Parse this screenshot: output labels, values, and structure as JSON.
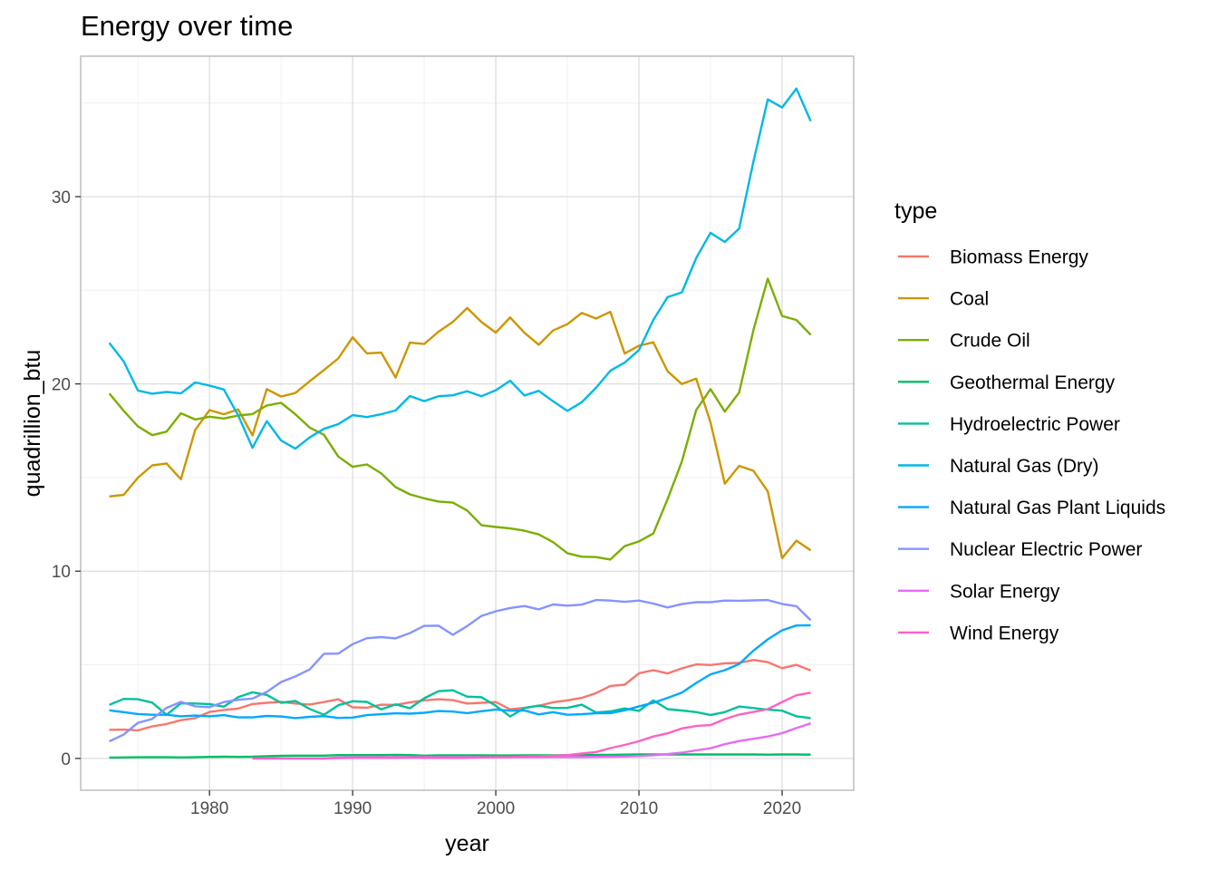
{
  "chart_data": {
    "type": "line",
    "title": "Energy over time",
    "xlabel": "year",
    "ylabel": "quadrillion_btu",
    "xlim": [
      1971,
      2025
    ],
    "ylim": [
      -1.7,
      37.5
    ],
    "x_ticks": [
      1980,
      1990,
      2000,
      2010,
      2020
    ],
    "x_tick_labels": [
      "1980",
      "1990",
      "2000",
      "2010",
      "2020"
    ],
    "y_ticks": [
      0,
      10,
      20,
      30
    ],
    "y_tick_labels": [
      "0",
      "10",
      "20",
      "30"
    ],
    "grid": true,
    "legend": {
      "title": "type",
      "placement": "right"
    },
    "series": [
      {
        "name": "Biomass Energy",
        "color": "#F8766D",
        "x": [
          1973,
          1974,
          1975,
          1976,
          1977,
          1978,
          1979,
          1980,
          1981,
          1982,
          1983,
          1984,
          1985,
          1986,
          1987,
          1988,
          1989,
          1990,
          1991,
          1992,
          1993,
          1994,
          1995,
          1996,
          1997,
          1998,
          1999,
          2000,
          2001,
          2002,
          2003,
          2004,
          2005,
          2006,
          2007,
          2008,
          2009,
          2010,
          2011,
          2012,
          2013,
          2014,
          2015,
          2016,
          2017,
          2018,
          2019,
          2020,
          2021,
          2022
        ],
        "y": [
          1.53,
          1.54,
          1.5,
          1.71,
          1.84,
          2.04,
          2.15,
          2.48,
          2.59,
          2.66,
          2.9,
          2.97,
          3.02,
          2.93,
          2.88,
          3.01,
          3.16,
          2.73,
          2.71,
          2.87,
          2.86,
          2.99,
          3.1,
          3.16,
          3.11,
          2.93,
          2.97,
          3.01,
          2.62,
          2.7,
          2.81,
          3.0,
          3.1,
          3.23,
          3.49,
          3.87,
          3.94,
          4.55,
          4.71,
          4.54,
          4.81,
          5.02,
          4.99,
          5.08,
          5.1,
          5.26,
          5.14,
          4.82,
          5.0,
          4.7
        ]
      },
      {
        "name": "Coal",
        "color": "#CD9600",
        "x": [
          1973,
          1974,
          1975,
          1976,
          1977,
          1978,
          1979,
          1980,
          1981,
          1982,
          1983,
          1984,
          1985,
          1986,
          1987,
          1988,
          1989,
          1990,
          1991,
          1992,
          1993,
          1994,
          1995,
          1996,
          1997,
          1998,
          1999,
          2000,
          2001,
          2002,
          2003,
          2004,
          2005,
          2006,
          2007,
          2008,
          2009,
          2010,
          2011,
          2012,
          2013,
          2014,
          2015,
          2016,
          2017,
          2018,
          2019,
          2020,
          2021,
          2022
        ],
        "y": [
          13.99,
          14.07,
          14.99,
          15.65,
          15.75,
          14.91,
          17.54,
          18.6,
          18.38,
          18.64,
          17.25,
          19.72,
          19.33,
          19.51,
          20.14,
          20.74,
          21.36,
          22.49,
          21.63,
          21.67,
          20.34,
          22.2,
          22.13,
          22.79,
          23.31,
          24.05,
          23.3,
          22.74,
          23.55,
          22.73,
          22.09,
          22.85,
          23.19,
          23.79,
          23.49,
          23.85,
          21.62,
          22.04,
          22.22,
          20.68,
          19.99,
          20.28,
          17.95,
          14.67,
          15.62,
          15.36,
          14.26,
          10.7,
          11.63,
          11.11
        ]
      },
      {
        "name": "Crude Oil",
        "color": "#7CAE00",
        "x": [
          1973,
          1974,
          1975,
          1976,
          1977,
          1978,
          1979,
          1980,
          1981,
          1982,
          1983,
          1984,
          1985,
          1986,
          1987,
          1988,
          1989,
          1990,
          1991,
          1992,
          1993,
          1994,
          1995,
          1996,
          1997,
          1998,
          1999,
          2000,
          2001,
          2002,
          2003,
          2004,
          2005,
          2006,
          2007,
          2008,
          2009,
          2010,
          2011,
          2012,
          2013,
          2014,
          2015,
          2016,
          2017,
          2018,
          2019,
          2020,
          2021,
          2022
        ],
        "y": [
          19.49,
          18.57,
          17.73,
          17.26,
          17.45,
          18.43,
          18.1,
          18.25,
          18.15,
          18.31,
          18.39,
          18.85,
          18.99,
          18.38,
          17.67,
          17.28,
          16.12,
          15.57,
          15.7,
          15.22,
          14.49,
          14.1,
          13.89,
          13.72,
          13.66,
          13.24,
          12.45,
          12.36,
          12.28,
          12.16,
          11.96,
          11.55,
          10.96,
          10.77,
          10.75,
          10.62,
          11.34,
          11.59,
          12.01,
          13.84,
          15.86,
          18.6,
          19.72,
          18.52,
          19.54,
          22.88,
          25.62,
          23.63,
          23.41,
          22.62
        ]
      },
      {
        "name": "Geothermal Energy",
        "color": "#00BE67",
        "x": [
          1973,
          1974,
          1975,
          1976,
          1977,
          1978,
          1979,
          1980,
          1981,
          1982,
          1983,
          1984,
          1985,
          1986,
          1987,
          1988,
          1989,
          1990,
          1991,
          1992,
          1993,
          1994,
          1995,
          1996,
          1997,
          1998,
          1999,
          2000,
          2001,
          2002,
          2003,
          2004,
          2005,
          2006,
          2007,
          2008,
          2009,
          2010,
          2011,
          2012,
          2013,
          2014,
          2015,
          2016,
          2017,
          2018,
          2019,
          2020,
          2021,
          2022
        ],
        "y": [
          0.04,
          0.05,
          0.06,
          0.06,
          0.06,
          0.05,
          0.06,
          0.08,
          0.09,
          0.08,
          0.09,
          0.12,
          0.14,
          0.15,
          0.15,
          0.15,
          0.18,
          0.18,
          0.18,
          0.18,
          0.19,
          0.18,
          0.15,
          0.17,
          0.17,
          0.17,
          0.17,
          0.16,
          0.16,
          0.17,
          0.17,
          0.17,
          0.18,
          0.18,
          0.19,
          0.19,
          0.2,
          0.21,
          0.21,
          0.21,
          0.21,
          0.21,
          0.21,
          0.21,
          0.21,
          0.21,
          0.2,
          0.21,
          0.21,
          0.2
        ]
      },
      {
        "name": "Hydroelectric Power",
        "color": "#00C19A",
        "x": [
          1973,
          1974,
          1975,
          1976,
          1977,
          1978,
          1979,
          1980,
          1981,
          1982,
          1983,
          1984,
          1985,
          1986,
          1987,
          1988,
          1989,
          1990,
          1991,
          1992,
          1993,
          1994,
          1995,
          1996,
          1997,
          1998,
          1999,
          2000,
          2001,
          2002,
          2003,
          2004,
          2005,
          2006,
          2007,
          2008,
          2009,
          2010,
          2011,
          2012,
          2013,
          2014,
          2015,
          2016,
          2017,
          2018,
          2019,
          2020,
          2021,
          2022
        ],
        "y": [
          2.86,
          3.18,
          3.16,
          2.98,
          2.33,
          2.94,
          2.93,
          2.9,
          2.76,
          3.27,
          3.53,
          3.39,
          2.97,
          3.07,
          2.64,
          2.33,
          2.84,
          3.05,
          3.02,
          2.62,
          2.89,
          2.68,
          3.21,
          3.59,
          3.64,
          3.3,
          3.27,
          2.81,
          2.24,
          2.69,
          2.82,
          2.69,
          2.7,
          2.87,
          2.45,
          2.51,
          2.67,
          2.54,
          3.1,
          2.63,
          2.56,
          2.47,
          2.32,
          2.47,
          2.77,
          2.69,
          2.6,
          2.55,
          2.25,
          2.15
        ]
      },
      {
        "name": "Natural Gas (Dry)",
        "color": "#00B8E7",
        "x": [
          1973,
          1974,
          1975,
          1976,
          1977,
          1978,
          1979,
          1980,
          1981,
          1982,
          1983,
          1984,
          1985,
          1986,
          1987,
          1988,
          1989,
          1990,
          1991,
          1992,
          1993,
          1994,
          1995,
          1996,
          1997,
          1998,
          1999,
          2000,
          2001,
          2002,
          2003,
          2004,
          2005,
          2006,
          2007,
          2008,
          2009,
          2010,
          2011,
          2012,
          2013,
          2014,
          2015,
          2016,
          2017,
          2018,
          2019,
          2020,
          2021,
          2022
        ],
        "y": [
          22.19,
          21.21,
          19.64,
          19.48,
          19.57,
          19.49,
          20.08,
          19.91,
          19.7,
          18.32,
          16.59,
          18.01,
          16.98,
          16.54,
          17.14,
          17.6,
          17.85,
          18.33,
          18.23,
          18.38,
          18.58,
          19.35,
          19.08,
          19.34,
          19.39,
          19.61,
          19.34,
          19.66,
          20.17,
          19.38,
          19.63,
          19.07,
          18.56,
          19.02,
          19.79,
          20.7,
          21.14,
          21.81,
          23.41,
          24.63,
          24.89,
          26.72,
          28.07,
          27.58,
          28.29,
          31.88,
          35.19,
          34.76,
          35.77,
          34.03
        ]
      },
      {
        "name": "Natural Gas Plant Liquids",
        "color": "#00A9FF",
        "x": [
          1973,
          1974,
          1975,
          1976,
          1977,
          1978,
          1979,
          1980,
          1981,
          1982,
          1983,
          1984,
          1985,
          1986,
          1987,
          1988,
          1989,
          1990,
          1991,
          1992,
          1993,
          1994,
          1995,
          1996,
          1997,
          1998,
          1999,
          2000,
          2001,
          2002,
          2003,
          2004,
          2005,
          2006,
          2007,
          2008,
          2009,
          2010,
          2011,
          2012,
          2013,
          2014,
          2015,
          2016,
          2017,
          2018,
          2019,
          2020,
          2021,
          2022
        ],
        "y": [
          2.57,
          2.47,
          2.37,
          2.33,
          2.33,
          2.25,
          2.29,
          2.25,
          2.31,
          2.19,
          2.19,
          2.27,
          2.24,
          2.15,
          2.22,
          2.26,
          2.16,
          2.18,
          2.31,
          2.36,
          2.41,
          2.39,
          2.44,
          2.53,
          2.5,
          2.42,
          2.52,
          2.61,
          2.55,
          2.56,
          2.35,
          2.47,
          2.33,
          2.36,
          2.41,
          2.42,
          2.57,
          2.78,
          2.97,
          3.23,
          3.51,
          4.03,
          4.49,
          4.71,
          5.04,
          5.76,
          6.36,
          6.84,
          7.1,
          7.11
        ]
      },
      {
        "name": "Nuclear Electric Power",
        "color": "#8494FF",
        "x": [
          1973,
          1974,
          1975,
          1976,
          1977,
          1978,
          1979,
          1980,
          1981,
          1982,
          1983,
          1984,
          1985,
          1986,
          1987,
          1988,
          1989,
          1990,
          1991,
          1992,
          1993,
          1994,
          1995,
          1996,
          1997,
          1998,
          1999,
          2000,
          2001,
          2002,
          2003,
          2004,
          2005,
          2006,
          2007,
          2008,
          2009,
          2010,
          2011,
          2012,
          2013,
          2014,
          2015,
          2016,
          2017,
          2018,
          2019,
          2020,
          2021,
          2022
        ],
        "y": [
          0.91,
          1.27,
          1.9,
          2.11,
          2.7,
          3.02,
          2.78,
          2.74,
          3.01,
          3.13,
          3.2,
          3.55,
          4.08,
          4.38,
          4.75,
          5.59,
          5.6,
          6.1,
          6.42,
          6.48,
          6.41,
          6.69,
          7.08,
          7.09,
          6.6,
          7.07,
          7.61,
          7.86,
          8.03,
          8.14,
          7.96,
          8.22,
          8.16,
          8.21,
          8.46,
          8.43,
          8.36,
          8.43,
          8.27,
          8.06,
          8.24,
          8.34,
          8.34,
          8.43,
          8.42,
          8.44,
          8.46,
          8.25,
          8.13,
          7.38
        ]
      },
      {
        "name": "Solar Energy",
        "color": "#E76BF3",
        "x": [
          1983,
          1984,
          1985,
          1986,
          1987,
          1988,
          1989,
          1990,
          1991,
          1992,
          1993,
          1994,
          1995,
          1996,
          1997,
          1998,
          1999,
          2000,
          2001,
          2002,
          2003,
          2004,
          2005,
          2006,
          2007,
          2008,
          2009,
          2010,
          2011,
          2012,
          2013,
          2014,
          2015,
          2016,
          2017,
          2018,
          2019,
          2020,
          2021,
          2022
        ],
        "y": [
          0.0,
          0.0,
          0.0,
          0.0,
          0.0,
          0.0,
          0.05,
          0.06,
          0.06,
          0.06,
          0.07,
          0.07,
          0.07,
          0.07,
          0.07,
          0.07,
          0.07,
          0.06,
          0.06,
          0.06,
          0.06,
          0.07,
          0.07,
          0.07,
          0.08,
          0.09,
          0.1,
          0.13,
          0.17,
          0.23,
          0.31,
          0.43,
          0.54,
          0.76,
          0.93,
          1.05,
          1.17,
          1.35,
          1.62,
          1.87
        ]
      },
      {
        "name": "Wind Energy",
        "color": "#FF61C3",
        "x": [
          1983,
          1984,
          1985,
          1986,
          1987,
          1988,
          1989,
          1990,
          1991,
          1992,
          1993,
          1994,
          1995,
          1996,
          1997,
          1998,
          1999,
          2000,
          2001,
          2002,
          2003,
          2004,
          2005,
          2006,
          2007,
          2008,
          2009,
          2010,
          2011,
          2012,
          2013,
          2014,
          2015,
          2016,
          2017,
          2018,
          2019,
          2020,
          2021,
          2022
        ],
        "y": [
          0.0,
          0.0,
          0.0,
          0.0,
          0.0,
          0.0,
          0.02,
          0.03,
          0.03,
          0.03,
          0.03,
          0.04,
          0.03,
          0.03,
          0.03,
          0.03,
          0.05,
          0.06,
          0.07,
          0.1,
          0.11,
          0.14,
          0.18,
          0.26,
          0.34,
          0.55,
          0.72,
          0.92,
          1.17,
          1.34,
          1.6,
          1.73,
          1.78,
          2.1,
          2.34,
          2.48,
          2.63,
          3.01,
          3.37,
          3.51
        ]
      }
    ]
  }
}
